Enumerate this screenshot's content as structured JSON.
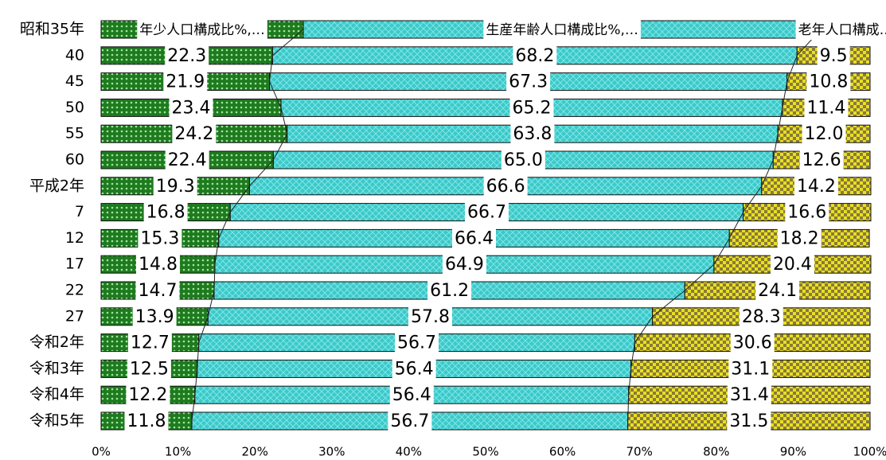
{
  "chart_data": {
    "type": "stacked_bar_horizontal",
    "categories": [
      "昭和35年",
      "40",
      "45",
      "50",
      "55",
      "60",
      "平成2年",
      "7",
      "12",
      "17",
      "22",
      "27",
      "令和2年",
      "令和3年",
      "令和4年",
      "令和5年"
    ],
    "series": [
      {
        "name": "年少人口構成比%,…",
        "color": "#2e8b2e",
        "values": [
          26.3,
          22.3,
          21.9,
          23.4,
          24.2,
          22.4,
          19.3,
          16.8,
          15.3,
          14.8,
          14.7,
          13.9,
          12.7,
          12.5,
          12.2,
          11.8
        ],
        "value_labels": [
          null,
          "22.3",
          "21.9",
          "23.4",
          "24.2",
          "22.4",
          "19.3",
          "16.8",
          "15.3",
          "14.8",
          "14.7",
          "13.9",
          "12.7",
          "12.5",
          "12.2",
          "11.8"
        ]
      },
      {
        "name": "生産年齢人口構成比%,…",
        "color": "#3cc8c8",
        "values": [
          67.3,
          68.2,
          67.3,
          65.2,
          63.8,
          65.0,
          66.6,
          66.7,
          66.4,
          64.9,
          61.2,
          57.8,
          56.7,
          56.4,
          56.4,
          56.7
        ],
        "value_labels": [
          null,
          "68.2",
          "67.3",
          "65.2",
          "63.8",
          "65.0",
          "66.6",
          "66.7",
          "66.4",
          "64.9",
          "61.2",
          "57.8",
          "56.7",
          "56.4",
          "56.4",
          "56.7"
        ]
      },
      {
        "name": "老年人口構成…",
        "color": "#e8e020",
        "values": [
          6.4,
          9.5,
          10.8,
          11.4,
          12.0,
          12.6,
          14.2,
          16.6,
          18.2,
          20.4,
          24.1,
          28.3,
          30.6,
          31.1,
          31.4,
          31.5
        ],
        "value_labels": [
          null,
          "9.5",
          "10.8",
          "11.4",
          "12.0",
          "12.6",
          "14.2",
          "16.6",
          "18.2",
          "20.4",
          "24.1",
          "28.3",
          "30.6",
          "31.1",
          "31.4",
          "31.5"
        ]
      }
    ],
    "xlim": [
      0,
      100
    ],
    "xticks": [
      {
        "value": 0,
        "label": "0%"
      },
      {
        "value": 10,
        "label": "10%"
      },
      {
        "value": 20,
        "label": "20%"
      },
      {
        "value": 30,
        "label": "30%"
      },
      {
        "value": 40,
        "label": "40%"
      },
      {
        "value": 50,
        "label": "50%"
      },
      {
        "value": 60,
        "label": "60%"
      },
      {
        "value": 70,
        "label": "70%"
      },
      {
        "value": 80,
        "label": "80%"
      },
      {
        "value": 90,
        "label": "90%"
      },
      {
        "value": 100,
        "label": "100%"
      }
    ]
  }
}
